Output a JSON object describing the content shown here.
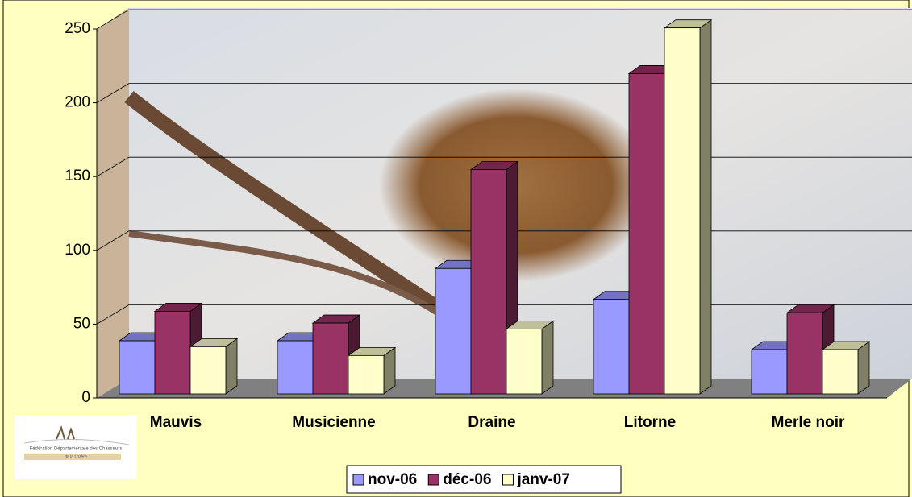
{
  "chart_data": {
    "type": "bar3d",
    "categories": [
      "Mauvis",
      "Musicienne",
      "Draine",
      "Litorne",
      "Merle noir"
    ],
    "series": [
      {
        "name": "nov-06",
        "color": "#9999ff",
        "values": [
          36,
          36,
          85,
          64,
          30
        ]
      },
      {
        "name": "déc-06",
        "color": "#993366",
        "values": [
          56,
          48,
          152,
          217,
          55
        ]
      },
      {
        "name": "janv-07",
        "color": "#ffffcc",
        "values": [
          32,
          26,
          44,
          248,
          30
        ]
      }
    ],
    "ylim": [
      0,
      250
    ],
    "yticks": [
      0,
      50,
      100,
      150,
      200,
      250
    ],
    "grid": true,
    "legend": "bottom",
    "logo": {
      "line1": "Fédération Départementale des Chasseurs",
      "line2": "de la Lozère"
    }
  }
}
